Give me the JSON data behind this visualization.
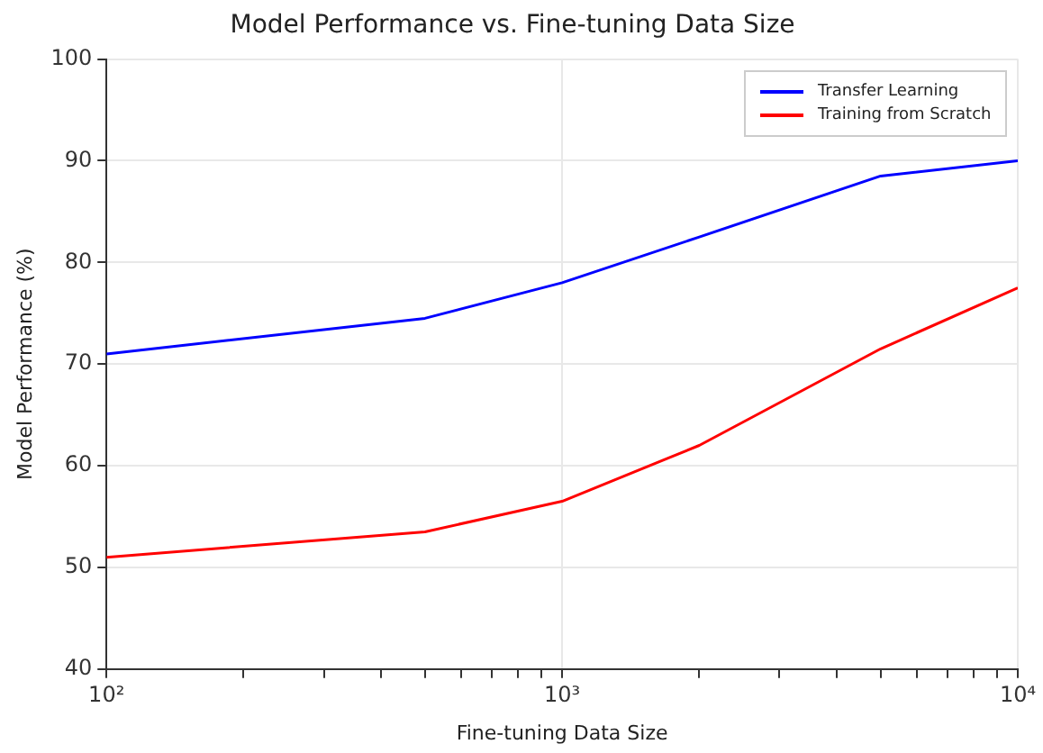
{
  "chart_data": {
    "type": "line",
    "title": "Model Performance vs. Fine-tuning Data Size",
    "xlabel": "Fine-tuning Data Size",
    "ylabel": "Model Performance (%)",
    "x": [
      100,
      500,
      1000,
      2000,
      5000,
      10000
    ],
    "series": [
      {
        "name": "Transfer Learning",
        "color": "#0000ff",
        "values": [
          71,
          74.5,
          78,
          82.5,
          88.5,
          90
        ]
      },
      {
        "name": "Training from Scratch",
        "color": "#ff0000",
        "values": [
          51,
          53.5,
          56.5,
          62,
          71.5,
          77.5
        ]
      }
    ],
    "log": "x",
    "xlim": [
      100,
      10000
    ],
    "xticks": [
      {
        "value": 100,
        "label": "10²"
      },
      {
        "value": 200,
        "label": null
      },
      {
        "value": 300,
        "label": null
      },
      {
        "value": 400,
        "label": null
      },
      {
        "value": 500,
        "label": null
      },
      {
        "value": 600,
        "label": null
      },
      {
        "value": 700,
        "label": null
      },
      {
        "value": 800,
        "label": null
      },
      {
        "value": 900,
        "label": null
      },
      {
        "value": 1000,
        "label": "10³"
      },
      {
        "value": 2000,
        "label": null
      },
      {
        "value": 3000,
        "label": null
      },
      {
        "value": 4000,
        "label": null
      },
      {
        "value": 5000,
        "label": null
      },
      {
        "value": 6000,
        "label": null
      },
      {
        "value": 7000,
        "label": null
      },
      {
        "value": 8000,
        "label": null
      },
      {
        "value": 9000,
        "label": null
      },
      {
        "value": 10000,
        "label": "10⁴"
      }
    ],
    "ylim": [
      40,
      100
    ],
    "yticks": [
      40,
      50,
      60,
      70,
      80,
      90,
      100
    ],
    "grid": true,
    "legend": "top right",
    "marker": "none",
    "line_style": "solid"
  }
}
